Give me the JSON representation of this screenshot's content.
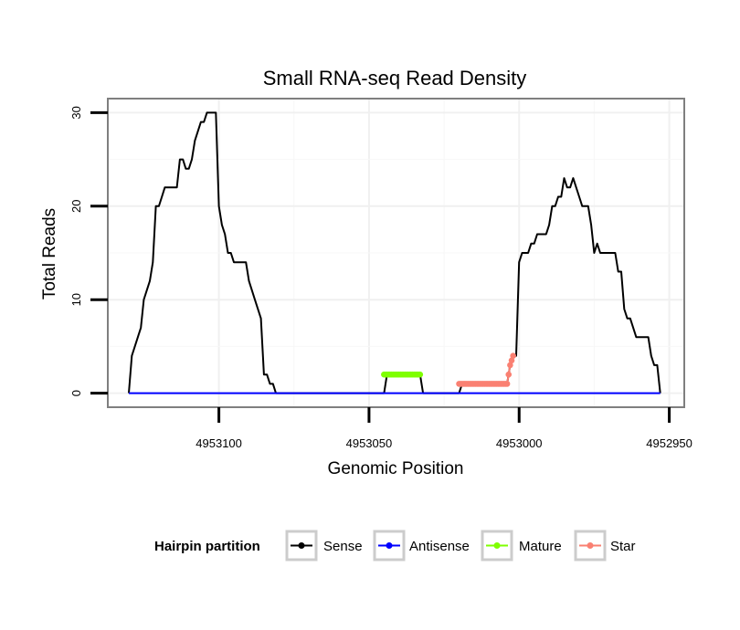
{
  "chart_data": {
    "type": "line",
    "title": "Small RNA-seq Read Density",
    "xlabel": "Genomic Position",
    "ylabel": "Total Reads",
    "xlim": [
      4953137,
      4952945
    ],
    "ylim": [
      -1.5,
      31.5
    ],
    "x_reversed": true,
    "grid": true,
    "x_ticks": [
      4953100,
      4953050,
      4953000,
      4952950
    ],
    "x_tick_labels": [
      "4953100",
      "4953050",
      "4953000",
      "4952950"
    ],
    "y_ticks": [
      0,
      10,
      20,
      30
    ],
    "y_tick_labels": [
      "0",
      "10",
      "20",
      "30"
    ],
    "legend": {
      "title": "Hairpin partition",
      "position": "bottom",
      "items": [
        {
          "label": "Sense",
          "color": "#000000"
        },
        {
          "label": "Antisense",
          "color": "#0000FF"
        },
        {
          "label": "Mature",
          "color": "#7FFF00"
        },
        {
          "label": "Star",
          "color": "#FA8072"
        }
      ]
    },
    "series": [
      {
        "name": "Sense",
        "color": "#000000",
        "points": [
          [
            4953130,
            0
          ],
          [
            4953129,
            4
          ],
          [
            4953127,
            6
          ],
          [
            4953126,
            7
          ],
          [
            4953125,
            10
          ],
          [
            4953123,
            12
          ],
          [
            4953122,
            14
          ],
          [
            4953121,
            20
          ],
          [
            4953120,
            20
          ],
          [
            4953119,
            21
          ],
          [
            4953118,
            22
          ],
          [
            4953114,
            22
          ],
          [
            4953113,
            25
          ],
          [
            4953112,
            25
          ],
          [
            4953111,
            24
          ],
          [
            4953110,
            24
          ],
          [
            4953109,
            25
          ],
          [
            4953108,
            27
          ],
          [
            4953106,
            29
          ],
          [
            4953105,
            29
          ],
          [
            4953104,
            30
          ],
          [
            4953101,
            30
          ],
          [
            4953100,
            20
          ],
          [
            4953099,
            18
          ],
          [
            4953098,
            17
          ],
          [
            4953097,
            15
          ],
          [
            4953096,
            15
          ],
          [
            4953095,
            14
          ],
          [
            4953091,
            14
          ],
          [
            4953090,
            12
          ],
          [
            4953088,
            10
          ],
          [
            4953086,
            8
          ],
          [
            4953085,
            2
          ],
          [
            4953084,
            2
          ],
          [
            4953083,
            1
          ],
          [
            4953082,
            1
          ],
          [
            4953081,
            0
          ],
          [
            4953045,
            0
          ],
          [
            4953044,
            2
          ],
          [
            4953033,
            2
          ],
          [
            4953032,
            0
          ],
          [
            4953020,
            0
          ],
          [
            4953019,
            1
          ],
          [
            4953004,
            1
          ],
          [
            4953003,
            3
          ],
          [
            4953002,
            4
          ],
          [
            4953001,
            4
          ],
          [
            4953000,
            14
          ],
          [
            4952999,
            15
          ],
          [
            4952997,
            15
          ],
          [
            4952996,
            16
          ],
          [
            4952995,
            16
          ],
          [
            4952994,
            17
          ],
          [
            4952991,
            17
          ],
          [
            4952990,
            18
          ],
          [
            4952989,
            20
          ],
          [
            4952988,
            20
          ],
          [
            4952987,
            21
          ],
          [
            4952986,
            21
          ],
          [
            4952985,
            23
          ],
          [
            4952984,
            22
          ],
          [
            4952983,
            22
          ],
          [
            4952982,
            23
          ],
          [
            4952981,
            22
          ],
          [
            4952980,
            21
          ],
          [
            4952979,
            20
          ],
          [
            4952977,
            20
          ],
          [
            4952976,
            18
          ],
          [
            4952975,
            15
          ],
          [
            4952974,
            16
          ],
          [
            4952973,
            15
          ],
          [
            4952968,
            15
          ],
          [
            4952967,
            13
          ],
          [
            4952966,
            13
          ],
          [
            4952965,
            9
          ],
          [
            4952964,
            8
          ],
          [
            4952963,
            8
          ],
          [
            4952962,
            7
          ],
          [
            4952961,
            6
          ],
          [
            4952957,
            6
          ],
          [
            4952956,
            4
          ],
          [
            4952955,
            3
          ],
          [
            4952954,
            3
          ],
          [
            4952953,
            0
          ]
        ]
      },
      {
        "name": "Antisense",
        "color": "#0000FF",
        "points": [
          [
            4953130,
            0
          ],
          [
            4953081,
            0
          ],
          [
            4953020,
            0
          ],
          [
            4952953,
            0
          ]
        ]
      },
      {
        "name": "Mature",
        "color": "#7FFF00",
        "points": [
          [
            4953045,
            2
          ],
          [
            4953041,
            2
          ],
          [
            4953037,
            2
          ],
          [
            4953033,
            2
          ]
        ]
      },
      {
        "name": "Star",
        "color": "#FA8072",
        "points": [
          [
            4953020,
            1
          ],
          [
            4953018,
            1
          ],
          [
            4953016,
            1
          ],
          [
            4953014,
            1
          ],
          [
            4953012,
            1
          ],
          [
            4953010,
            1
          ],
          [
            4953008,
            1
          ],
          [
            4953006,
            1
          ],
          [
            4953004,
            1
          ],
          [
            4953003,
            3
          ],
          [
            4953002,
            4
          ]
        ]
      }
    ]
  }
}
